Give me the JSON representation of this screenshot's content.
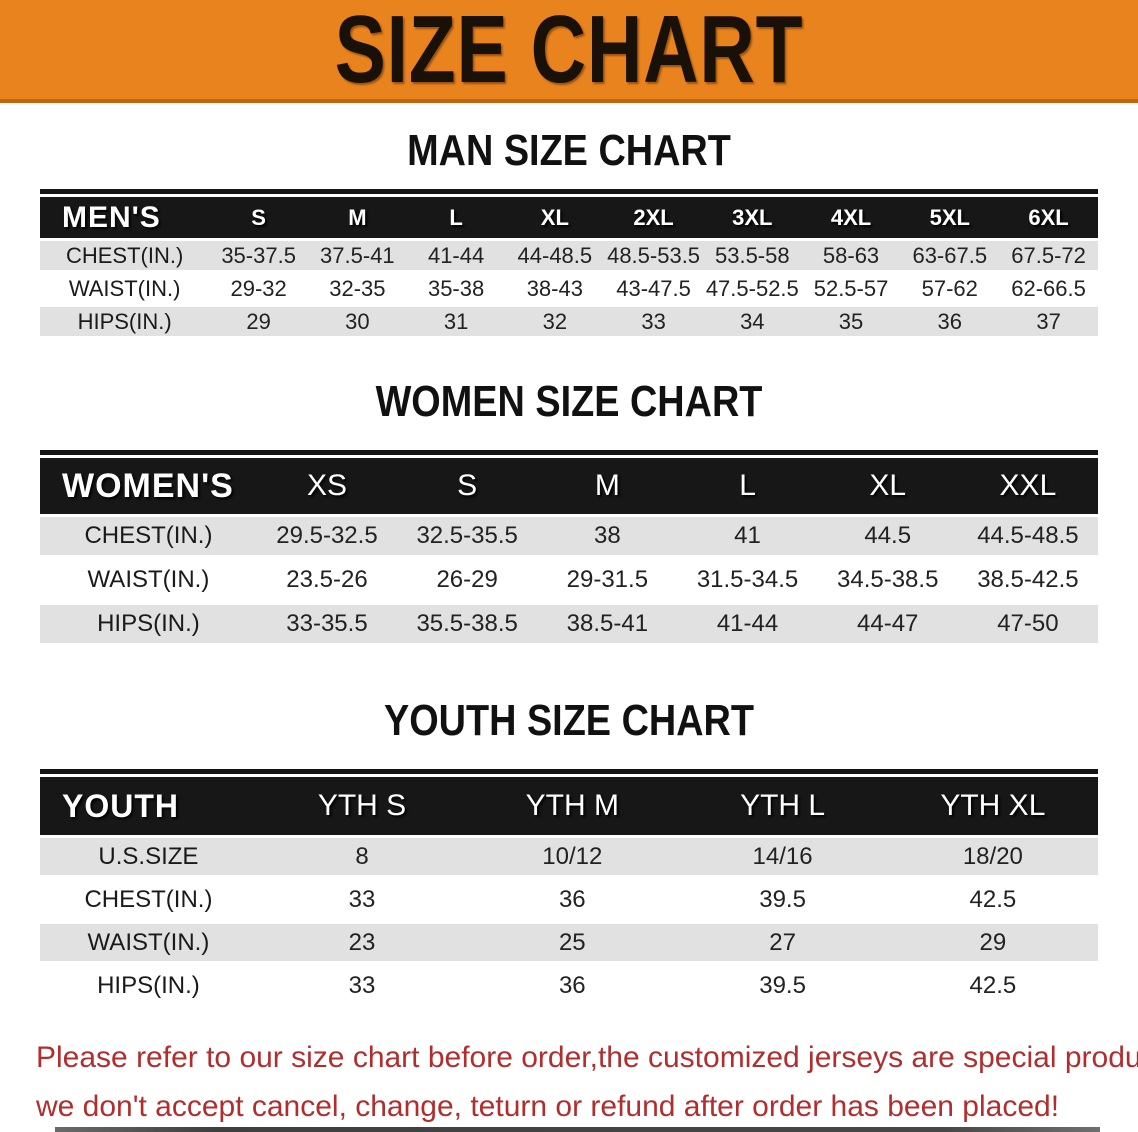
{
  "banner": {
    "title": "SIZE CHART",
    "bg_color": "#E8831E"
  },
  "sections": [
    {
      "heading": "MAN SIZE CHART",
      "table": {
        "header_label": "MEN'S",
        "columns": [
          "S",
          "M",
          "L",
          "XL",
          "2XL",
          "3XL",
          "4XL",
          "5XL",
          "6XL"
        ],
        "rows": [
          {
            "label": "CHEST(IN.)",
            "values": [
              "35-37.5",
              "37.5-41",
              "41-44",
              "44-48.5",
              "48.5-53.5",
              "53.5-58",
              "58-63",
              "63-67.5",
              "67.5-72"
            ]
          },
          {
            "label": "WAIST(IN.)",
            "values": [
              "29-32",
              "32-35",
              "35-38",
              "38-43",
              "43-47.5",
              "47.5-52.5",
              "52.5-57",
              "57-62",
              "62-66.5"
            ]
          },
          {
            "label": "HIPS(IN.)",
            "values": [
              "29",
              "30",
              "31",
              "32",
              "33",
              "34",
              "35",
              "36",
              "37"
            ]
          }
        ]
      }
    },
    {
      "heading": "WOMEN SIZE CHART",
      "table": {
        "header_label": "WOMEN'S",
        "columns": [
          "XS",
          "S",
          "M",
          "L",
          "XL",
          "XXL"
        ],
        "rows": [
          {
            "label": "CHEST(IN.)",
            "values": [
              "29.5-32.5",
              "32.5-35.5",
              "38",
              "41",
              "44.5",
              "44.5-48.5"
            ]
          },
          {
            "label": "WAIST(IN.)",
            "values": [
              "23.5-26",
              "26-29",
              "29-31.5",
              "31.5-34.5",
              "34.5-38.5",
              "38.5-42.5"
            ]
          },
          {
            "label": "HIPS(IN.)",
            "values": [
              "33-35.5",
              "35.5-38.5",
              "38.5-41",
              "41-44",
              "44-47",
              "47-50"
            ]
          }
        ]
      }
    },
    {
      "heading": "YOUTH SIZE CHART",
      "table": {
        "header_label": "YOUTH",
        "columns": [
          "YTH S",
          "YTH M",
          "YTH L",
          "YTH XL"
        ],
        "rows": [
          {
            "label": "U.S.SIZE",
            "values": [
              "8",
              "10/12",
              "14/16",
              "18/20"
            ]
          },
          {
            "label": "CHEST(IN.)",
            "values": [
              "33",
              "36",
              "39.5",
              "42.5"
            ]
          },
          {
            "label": "WAIST(IN.)",
            "values": [
              "23",
              "25",
              "27",
              "29"
            ]
          },
          {
            "label": "HIPS(IN.)",
            "values": [
              "33",
              "36",
              "39.5",
              "42.5"
            ]
          }
        ]
      }
    }
  ],
  "disclaimer": {
    "line1": "Please refer to our size chart before order,the customized jerseys are special products,",
    "line2": "we don't accept cancel, change, teturn or refund after order has been placed!",
    "color": "#B02E2E"
  },
  "colors": {
    "banner_orange": "#E8831E",
    "banner_border": "#C1660E",
    "header_band_black": "#171717",
    "row_shade_gray": "#E1E1E1"
  }
}
